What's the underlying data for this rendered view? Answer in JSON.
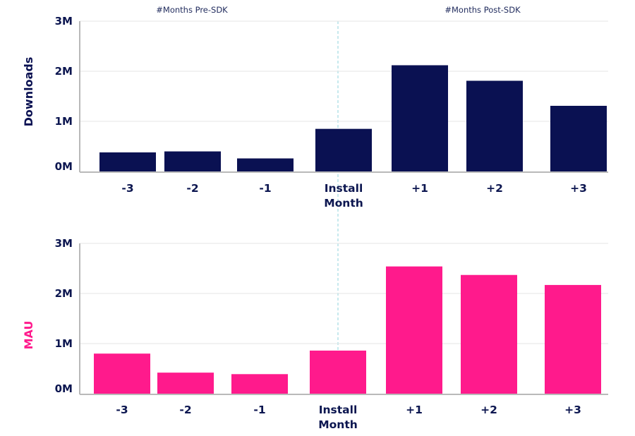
{
  "headers": {
    "pre": "#Months Pre-SDK",
    "post": "#Months Post-SDK"
  },
  "chart_data": [
    {
      "type": "bar",
      "ylabel": "Downloads",
      "categories": [
        "-3",
        "-2",
        "-1",
        "Install Month",
        "+1",
        "+2",
        "+3"
      ],
      "values": [
        0.38,
        0.4,
        0.26,
        0.85,
        2.12,
        1.81,
        1.31
      ],
      "value_unit": "M",
      "yticks": [
        "0M",
        "1M",
        "2M",
        "3M"
      ],
      "ylim": [
        0,
        3
      ],
      "color": "#0a1152",
      "ylabel_color": "#0a1152",
      "grid": true
    },
    {
      "type": "bar",
      "ylabel": "MAU",
      "categories": [
        "-3",
        "-2",
        "-1",
        "Install Month",
        "+1",
        "+2",
        "+3"
      ],
      "values": [
        0.8,
        0.42,
        0.39,
        0.86,
        2.54,
        2.37,
        2.17
      ],
      "value_unit": "M",
      "yticks": [
        "0M",
        "1M",
        "2M",
        "3M"
      ],
      "ylim": [
        0,
        3
      ],
      "color": "#ff1a8c",
      "ylabel_color": "#ff1a8c",
      "grid": true
    }
  ]
}
